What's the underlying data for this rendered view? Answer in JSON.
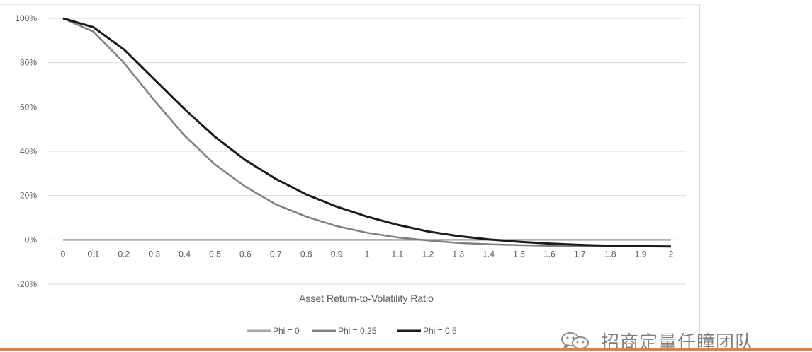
{
  "watermark": {
    "text": "招商定量任瞳团队",
    "icon": "wechat-icon"
  },
  "colors": {
    "grid": "#d9d9d9",
    "axis_text": "#595959",
    "bottom_rule": "#d9834a"
  },
  "chart_data": {
    "type": "line",
    "title": "",
    "xlabel": "Asset Return-to-Volatility Ratio",
    "ylabel": "",
    "x": [
      0,
      0.1,
      0.2,
      0.3,
      0.4,
      0.5,
      0.6,
      0.7,
      0.8,
      0.9,
      1,
      1.1,
      1.2,
      1.3,
      1.4,
      1.5,
      1.6,
      1.7,
      1.8,
      1.9,
      2
    ],
    "x_tick_labels": [
      "0",
      "0.1",
      "0.2",
      "0.3",
      "0.4",
      "0.5",
      "0.6",
      "0.7",
      "0.8",
      "0.9",
      "1",
      "1.1",
      "1.2",
      "1.3",
      "1.4",
      "1.5",
      "1.6",
      "1.7",
      "1.8",
      "1.9",
      "2"
    ],
    "ylim": [
      -20,
      100
    ],
    "y_ticks": [
      -20,
      0,
      20,
      40,
      60,
      80,
      100
    ],
    "y_tick_labels": [
      "-20%",
      "0%",
      "20%",
      "40%",
      "60%",
      "80%",
      "100%"
    ],
    "grid": true,
    "legend_position": "bottom",
    "series": [
      {
        "name": "Phi = 0",
        "color": "#a6a6a6",
        "values": [
          0,
          0,
          0,
          0,
          0,
          0,
          0,
          0,
          0,
          0,
          0,
          0,
          0,
          0,
          0,
          0,
          0,
          0,
          0,
          0,
          0
        ]
      },
      {
        "name": "Phi = 0.25",
        "color": "#7f7f7f",
        "values": [
          100,
          94,
          80,
          63,
          47,
          34,
          24,
          16,
          10.5,
          6.2,
          3.2,
          1.1,
          -0.3,
          -1.4,
          -2,
          -2.4,
          -2.7,
          -2.9,
          -3,
          -3,
          -3
        ]
      },
      {
        "name": "Phi = 0.5",
        "color": "#1a1a1a",
        "values": [
          100,
          96,
          86,
          72.5,
          59,
          46.5,
          36,
          27.5,
          20.5,
          15,
          10.5,
          6.8,
          3.8,
          1.7,
          0.2,
          -0.9,
          -1.7,
          -2.3,
          -2.7,
          -2.9,
          -3
        ]
      }
    ]
  }
}
